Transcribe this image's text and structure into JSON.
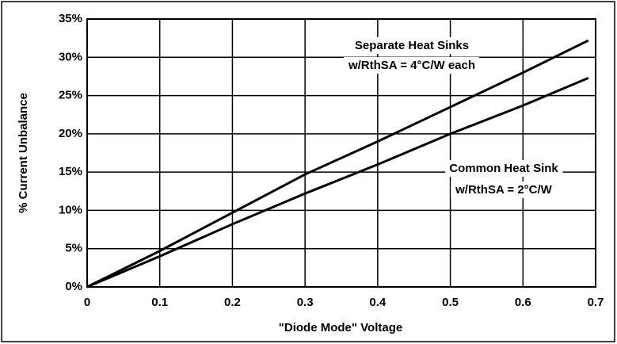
{
  "chart_data": {
    "type": "line",
    "xlabel": "\"Diode Mode\" Voltage",
    "ylabel": "% Current Unbalance",
    "x": [
      0,
      0.1,
      0.2,
      0.3,
      0.4,
      0.5,
      0.6,
      0.69
    ],
    "series": [
      {
        "color": "#000000",
        "values": [
          0,
          4.7,
          9.7,
          14.7,
          19,
          23.5,
          28,
          32.2
        ]
      },
      {
        "color": "#000000",
        "values": [
          0,
          4,
          8.2,
          12.2,
          16,
          20,
          23.7,
          27.3
        ]
      }
    ],
    "annotations": [
      "Separate Heat Sinks",
      "w/RthSA = 4°C/W each",
      "Common Heat Sink",
      "w/RthSA = 2°C/W"
    ],
    "xlim": [
      0,
      0.7
    ],
    "xticks": [
      0,
      0.1,
      0.2,
      0.3,
      0.4,
      0.5,
      0.6,
      0.7
    ],
    "ylim": [
      0,
      35
    ],
    "yticks": [
      {
        "value": 0,
        "label": "0%"
      },
      {
        "value": 5,
        "label": "5%"
      },
      {
        "value": 10,
        "label": "10%"
      },
      {
        "value": 15,
        "label": "15%"
      },
      {
        "value": 20,
        "label": "20%"
      },
      {
        "value": 25,
        "label": "25%"
      },
      {
        "value": 30,
        "label": "30%"
      },
      {
        "value": 35,
        "label": "35%"
      }
    ],
    "grid": true
  }
}
